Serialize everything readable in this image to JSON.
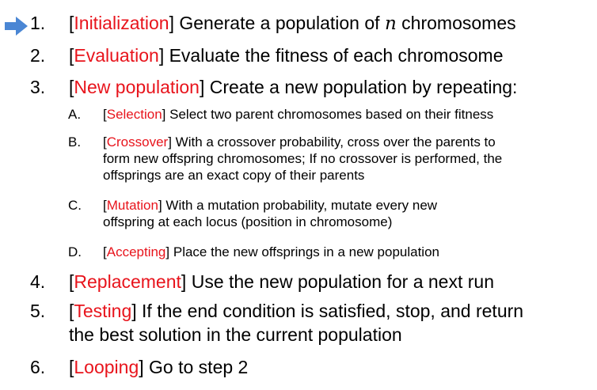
{
  "colors": {
    "keyword": "#e8141c",
    "arrow": "#4a86d4"
  },
  "pointer_icon": "right-arrow-icon",
  "steps": [
    {
      "num": "1.",
      "keyword": "Initialization",
      "text_before": " Generate a population of ",
      "math": "n",
      "text_after": " chromosomes"
    },
    {
      "num": "2.",
      "keyword": "Evaluation",
      "text": " Evaluate the fitness of each chromosome"
    },
    {
      "num": "3.",
      "keyword": "New population",
      "text": " Create a new population by repeating:"
    },
    {
      "num": "4.",
      "keyword": "Replacement",
      "text": " Use the new population for a next run"
    },
    {
      "num": "5.",
      "keyword": "Testing",
      "text": " If the end condition is satisfied, stop, and return",
      "line2": "the best solution in the current population"
    },
    {
      "num": "6.",
      "keyword": "Looping",
      "text": " Go to step 2"
    }
  ],
  "substeps": [
    {
      "num": "A.",
      "keyword": "Selection",
      "lines": [
        " Select two parent chromosomes based on their fitness"
      ]
    },
    {
      "num": "B.",
      "keyword": "Crossover",
      "lines": [
        " With a crossover probability, cross over the parents to",
        "form new offspring chromosomes; If no crossover is performed, the",
        "offsprings are an exact copy of their parents"
      ]
    },
    {
      "num": "C.",
      "keyword": "Mutation",
      "lines": [
        " With a mutation probability, mutate every new",
        "offspring at each locus (position in chromosome)"
      ]
    },
    {
      "num": "D.",
      "keyword": "Accepting",
      "lines": [
        " Place the new offsprings in a new population"
      ]
    }
  ],
  "brackets": {
    "open": "[",
    "close": "]"
  }
}
